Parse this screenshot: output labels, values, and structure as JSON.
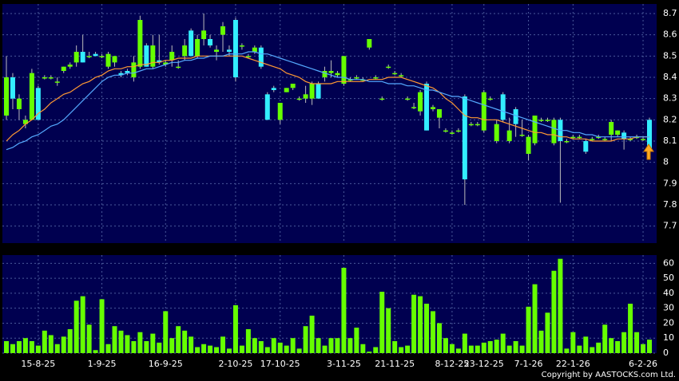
{
  "chart_data": {
    "type": "candlestick",
    "categories": [
      null,
      null,
      null,
      null,
      null,
      "15-8-25",
      null,
      null,
      null,
      null,
      null,
      null,
      null,
      null,
      null,
      "1-9-25",
      null,
      null,
      null,
      null,
      null,
      null,
      null,
      null,
      null,
      "16-9-25",
      null,
      null,
      null,
      null,
      null,
      null,
      null,
      null,
      null,
      null,
      "2-10-25",
      null,
      null,
      null,
      null,
      null,
      null,
      "17-10-25",
      null,
      null,
      null,
      null,
      null,
      null,
      null,
      null,
      null,
      "3-11-25",
      null,
      null,
      null,
      null,
      null,
      null,
      null,
      "21-11-25",
      null,
      null,
      null,
      null,
      null,
      null,
      null,
      null,
      "8-12-25",
      null,
      null,
      null,
      null,
      "23-12-25",
      null,
      null,
      null,
      null,
      null,
      null,
      "7-1-26",
      null,
      null,
      null,
      null,
      null,
      null,
      "22-1-26",
      null,
      null,
      null,
      null,
      null,
      null,
      null,
      null,
      null,
      null,
      "6-2-26",
      null
    ],
    "open": [
      8.22,
      8.4,
      8.25,
      8.18,
      8.2,
      8.35,
      8.4,
      8.4,
      8.38,
      8.43,
      8.45,
      8.47,
      8.52,
      8.5,
      8.51,
      8.5,
      8.45,
      8.47,
      8.42,
      8.43,
      8.4,
      8.45,
      8.55,
      8.45,
      8.48,
      8.46,
      8.48,
      8.45,
      8.5,
      8.62,
      8.5,
      8.58,
      8.58,
      8.52,
      8.6,
      8.53,
      8.67,
      8.55,
      8.5,
      8.52,
      8.54,
      8.32,
      8.35,
      8.2,
      8.33,
      8.35,
      8.3,
      8.3,
      8.3,
      8.37,
      8.4,
      8.42,
      8.41,
      8.37,
      8.39,
      8.4,
      8.39,
      8.54,
      8.4,
      8.3,
      8.45,
      8.42,
      8.41,
      8.3,
      8.26,
      8.24,
      8.37,
      8.25,
      8.21,
      8.15,
      8.14,
      8.15,
      8.31,
      8.18,
      8.18,
      8.15,
      8.3,
      8.1,
      8.32,
      8.1,
      8.25,
      8.13,
      8.04,
      8.09,
      8.2,
      8.2,
      8.09,
      8.2,
      8.1,
      8.12,
      8.12,
      8.1,
      8.11,
      8.12,
      8.11,
      8.13,
      8.13,
      8.14,
      8.11,
      8.12,
      8.11,
      8.2
    ],
    "high": [
      8.5,
      8.42,
      8.32,
      8.22,
      8.44,
      8.36,
      8.41,
      8.41,
      8.4,
      8.45,
      8.47,
      8.55,
      8.6,
      8.52,
      8.52,
      8.51,
      8.52,
      8.5,
      8.43,
      8.44,
      8.5,
      8.69,
      8.56,
      8.6,
      8.6,
      8.48,
      8.55,
      8.48,
      8.58,
      8.63,
      8.6,
      8.7,
      8.6,
      8.55,
      8.66,
      8.55,
      8.68,
      8.56,
      8.51,
      8.55,
      8.55,
      8.33,
      8.36,
      8.28,
      8.35,
      8.37,
      8.31,
      8.36,
      8.38,
      8.38,
      8.45,
      8.48,
      8.43,
      8.5,
      8.4,
      8.41,
      8.4,
      8.58,
      8.41,
      8.31,
      8.46,
      8.43,
      8.42,
      8.31,
      8.28,
      8.34,
      8.38,
      8.27,
      8.25,
      8.16,
      8.15,
      8.16,
      8.32,
      8.19,
      8.19,
      8.34,
      8.31,
      8.2,
      8.33,
      8.21,
      8.26,
      8.2,
      8.13,
      8.22,
      8.21,
      8.21,
      8.21,
      8.21,
      8.11,
      8.13,
      8.13,
      8.11,
      8.12,
      8.13,
      8.12,
      8.2,
      8.15,
      8.15,
      8.12,
      8.13,
      8.12,
      8.21
    ],
    "low": [
      8.2,
      8.25,
      8.2,
      8.16,
      8.2,
      8.2,
      8.39,
      8.39,
      8.36,
      8.42,
      8.44,
      8.45,
      8.47,
      8.49,
      8.5,
      8.49,
      8.44,
      8.45,
      8.4,
      8.41,
      8.38,
      8.44,
      8.45,
      8.44,
      8.46,
      8.45,
      8.45,
      8.44,
      8.48,
      8.5,
      8.49,
      8.55,
      8.54,
      8.48,
      8.52,
      8.5,
      8.38,
      8.53,
      8.49,
      8.51,
      8.44,
      8.2,
      8.33,
      8.18,
      8.33,
      8.34,
      8.29,
      8.28,
      8.27,
      8.3,
      8.38,
      8.4,
      8.4,
      8.36,
      8.38,
      8.39,
      8.38,
      8.53,
      8.39,
      8.29,
      8.44,
      8.41,
      8.4,
      8.29,
      8.25,
      8.22,
      8.15,
      8.24,
      8.16,
      8.14,
      8.13,
      8.14,
      7.8,
      8.17,
      8.17,
      8.14,
      8.29,
      8.09,
      8.19,
      8.09,
      8.12,
      8.12,
      8.01,
      8.08,
      8.19,
      8.19,
      8.08,
      7.81,
      8.09,
      8.11,
      8.11,
      8.04,
      8.1,
      8.11,
      8.1,
      8.1,
      8.12,
      8.06,
      8.1,
      8.11,
      8.1,
      8.05
    ],
    "close": [
      8.4,
      8.3,
      8.3,
      8.2,
      8.42,
      8.2,
      8.4,
      8.4,
      8.38,
      8.45,
      8.46,
      8.52,
      8.47,
      8.5,
      8.5,
      8.5,
      8.51,
      8.5,
      8.41,
      8.42,
      8.47,
      8.67,
      8.45,
      8.55,
      8.47,
      8.47,
      8.52,
      8.45,
      8.55,
      8.5,
      8.58,
      8.62,
      8.55,
      8.53,
      8.64,
      8.52,
      8.4,
      8.55,
      8.5,
      8.54,
      8.45,
      8.2,
      8.34,
      8.28,
      8.35,
      8.37,
      8.3,
      8.32,
      8.37,
      8.3,
      8.43,
      8.43,
      8.42,
      8.5,
      8.39,
      8.4,
      8.39,
      8.58,
      8.4,
      8.3,
      8.45,
      8.42,
      8.41,
      8.3,
      8.26,
      8.33,
      8.15,
      8.26,
      8.25,
      8.15,
      8.14,
      8.15,
      7.92,
      8.18,
      8.18,
      8.33,
      8.3,
      8.18,
      8.2,
      8.15,
      8.18,
      8.13,
      8.12,
      8.22,
      8.2,
      8.2,
      8.2,
      8.1,
      8.1,
      8.12,
      8.12,
      8.05,
      8.11,
      8.12,
      8.11,
      8.19,
      8.15,
      8.11,
      8.11,
      8.12,
      8.11,
      8.05
    ],
    "up_color": "#66ff00",
    "down_color": "#33eeff",
    "ma": [
      {
        "color": "#ff9933",
        "values": [
          8.1,
          8.13,
          8.15,
          8.18,
          8.2,
          8.23,
          8.25,
          8.28,
          8.3,
          8.32,
          8.33,
          8.35,
          8.37,
          8.38,
          8.4,
          8.41,
          8.43,
          8.44,
          8.44,
          8.45,
          8.45,
          8.46,
          8.46,
          8.47,
          8.47,
          8.48,
          8.48,
          8.49,
          8.49,
          8.49,
          8.5,
          8.5,
          8.5,
          8.5,
          8.5,
          8.5,
          8.5,
          8.5,
          8.49,
          8.48,
          8.47,
          8.46,
          8.45,
          8.44,
          8.42,
          8.41,
          8.4,
          8.38,
          8.37,
          8.37,
          8.37,
          8.37,
          8.38,
          8.38,
          8.38,
          8.38,
          8.38,
          8.39,
          8.39,
          8.39,
          8.4,
          8.4,
          8.4,
          8.39,
          8.38,
          8.37,
          8.36,
          8.35,
          8.33,
          8.3,
          8.28,
          8.25,
          8.22,
          8.21,
          8.21,
          8.2,
          8.2,
          8.2,
          8.19,
          8.18,
          8.17,
          8.16,
          8.15,
          8.14,
          8.14,
          8.13,
          8.13,
          8.12,
          8.12,
          8.11,
          8.11,
          8.11,
          8.1,
          8.1,
          8.1,
          8.1,
          8.11,
          8.11,
          8.11,
          8.12,
          8.12,
          8.12
        ]
      },
      {
        "color": "#55aaff",
        "values": [
          8.06,
          8.07,
          8.09,
          8.1,
          8.12,
          8.13,
          8.15,
          8.17,
          8.18,
          8.2,
          8.23,
          8.26,
          8.29,
          8.32,
          8.35,
          8.38,
          8.4,
          8.41,
          8.41,
          8.42,
          8.42,
          8.43,
          8.44,
          8.44,
          8.45,
          8.46,
          8.47,
          8.47,
          8.48,
          8.48,
          8.49,
          8.49,
          8.5,
          8.5,
          8.5,
          8.51,
          8.51,
          8.51,
          8.52,
          8.52,
          8.51,
          8.51,
          8.5,
          8.49,
          8.48,
          8.47,
          8.46,
          8.45,
          8.44,
          8.43,
          8.42,
          8.41,
          8.4,
          8.4,
          8.39,
          8.39,
          8.39,
          8.38,
          8.38,
          8.38,
          8.37,
          8.37,
          8.37,
          8.36,
          8.36,
          8.35,
          8.34,
          8.34,
          8.33,
          8.32,
          8.31,
          8.31,
          8.3,
          8.29,
          8.28,
          8.27,
          8.26,
          8.25,
          8.24,
          8.23,
          8.22,
          8.21,
          8.2,
          8.19,
          8.18,
          8.17,
          8.16,
          8.15,
          8.15,
          8.14,
          8.14,
          8.13,
          8.13,
          8.12,
          8.12,
          8.12,
          8.12,
          8.12,
          8.12,
          8.12,
          8.12,
          8.12
        ]
      }
    ],
    "ylim": [
      7.62,
      8.745
    ],
    "yticks": [
      7.7,
      7.8,
      7.9,
      8,
      8.1,
      8.2,
      8.3,
      8.4,
      8.5,
      8.6,
      8.7
    ],
    "grid": true,
    "volume": {
      "color": "#66ff00",
      "ylim": [
        0,
        65.5
      ],
      "yticks": [
        0,
        10,
        20,
        30,
        40,
        50,
        60
      ],
      "values": [
        8,
        6,
        8,
        10,
        8,
        5,
        15,
        12,
        6,
        11,
        16,
        35,
        38,
        19,
        2,
        36,
        6,
        18,
        15,
        12,
        8,
        14,
        8,
        13,
        7,
        28,
        10,
        18,
        15,
        11,
        4,
        6,
        5,
        4,
        11,
        3,
        32,
        5,
        16,
        10,
        8,
        4,
        10,
        7,
        5,
        10,
        3,
        18,
        25,
        10,
        5,
        10,
        10,
        57,
        10,
        17,
        6,
        1,
        4,
        41,
        30,
        8,
        4,
        5,
        39,
        38,
        33,
        28,
        20,
        10,
        6,
        3,
        13,
        5,
        5,
        7,
        8,
        9,
        13,
        5,
        8,
        5,
        31,
        46,
        15,
        27,
        55,
        63,
        3,
        14,
        5,
        11,
        4,
        7,
        19,
        10,
        8,
        14,
        33,
        14,
        6,
        9
      ]
    },
    "copyright": "Copyright by AASTOCKS.com Ltd."
  }
}
